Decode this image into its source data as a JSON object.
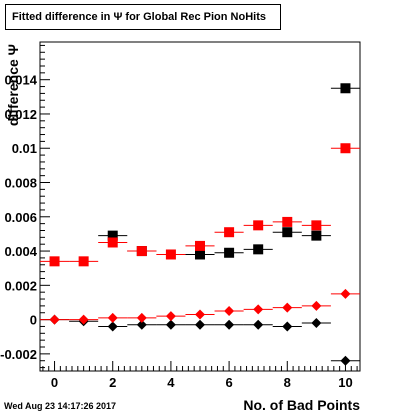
{
  "chart_data": {
    "type": "scatter",
    "title": "Fitted difference in  Ψ  for Global Rec Pion NoHits",
    "xlabel": "No. of Bad Points",
    "ylabel": "difference Ψ",
    "xlim": [
      -0.5,
      10.5
    ],
    "ylim": [
      -0.003,
      0.0162
    ],
    "x_ticks": [
      "0",
      "2",
      "4",
      "6",
      "8",
      "10"
    ],
    "y_ticks": [
      "-0.002",
      "0",
      "0.002",
      "0.004",
      "0.006",
      "0.008",
      "0.01",
      "0.012",
      "0.014"
    ],
    "series": [
      {
        "marker": "square",
        "color": "#000000",
        "points": [
          [
            2,
            0.0049
          ],
          [
            3,
            0.004
          ],
          [
            5,
            0.0038
          ],
          [
            6,
            0.0039
          ],
          [
            7,
            0.0041
          ],
          [
            8,
            0.0051
          ],
          [
            9,
            0.0049
          ],
          [
            10,
            0.0135
          ]
        ]
      },
      {
        "marker": "square",
        "color": "#ff0000",
        "points": [
          [
            0,
            0.0034
          ],
          [
            1,
            0.0034
          ],
          [
            2,
            0.0045
          ],
          [
            3,
            0.004
          ],
          [
            4,
            0.0038
          ],
          [
            5,
            0.0043
          ],
          [
            6,
            0.0051
          ],
          [
            7,
            0.0055
          ],
          [
            8,
            0.0057
          ],
          [
            9,
            0.0055
          ],
          [
            10,
            0.01
          ]
        ]
      },
      {
        "marker": "diamond",
        "color": "#000000",
        "points": [
          [
            0,
            0.0
          ],
          [
            1,
            -0.0001
          ],
          [
            2,
            -0.0004
          ],
          [
            3,
            -0.0003
          ],
          [
            4,
            -0.0003
          ],
          [
            5,
            -0.0003
          ],
          [
            6,
            -0.0003
          ],
          [
            7,
            -0.0003
          ],
          [
            8,
            -0.0004
          ],
          [
            9,
            -0.0002
          ],
          [
            10,
            -0.0024
          ]
        ]
      },
      {
        "marker": "diamond",
        "color": "#ff0000",
        "points": [
          [
            0,
            0.0
          ],
          [
            1,
            0.0
          ],
          [
            2,
            0.0001
          ],
          [
            3,
            0.0001
          ],
          [
            4,
            0.0002
          ],
          [
            5,
            0.0003
          ],
          [
            6,
            0.0005
          ],
          [
            7,
            0.0006
          ],
          [
            8,
            0.0007
          ],
          [
            9,
            0.0008
          ],
          [
            10,
            0.0015
          ]
        ]
      }
    ]
  },
  "footer": {
    "date_stamp": "Wed Aug 23 14:17:26 2017"
  }
}
